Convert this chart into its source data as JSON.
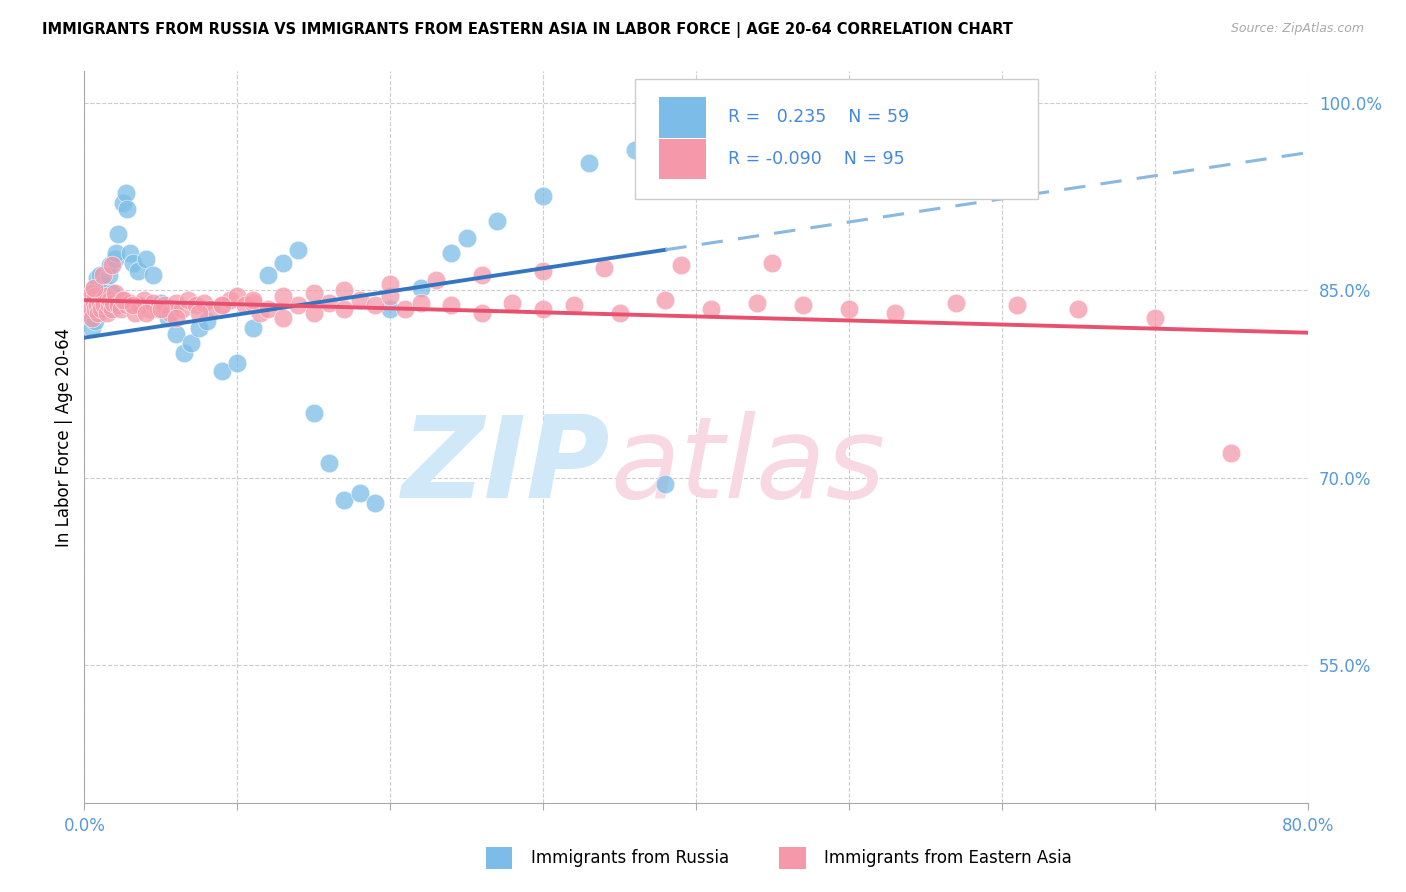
{
  "title": "IMMIGRANTS FROM RUSSIA VS IMMIGRANTS FROM EASTERN ASIA IN LABOR FORCE | AGE 20-64 CORRELATION CHART",
  "source": "Source: ZipAtlas.com",
  "ylabel": "In Labor Force | Age 20-64",
  "xlabel_russia": "Immigrants from Russia",
  "xlabel_eastern_asia": "Immigrants from Eastern Asia",
  "xlim": [
    0.0,
    0.8
  ],
  "ylim": [
    0.44,
    1.025
  ],
  "yticks": [
    0.55,
    0.7,
    0.85,
    1.0
  ],
  "ytick_labels": [
    "55.0%",
    "70.0%",
    "85.0%",
    "100.0%"
  ],
  "xtick_positions": [
    0.0,
    0.1,
    0.2,
    0.3,
    0.4,
    0.5,
    0.6,
    0.7,
    0.8
  ],
  "R_russia": 0.235,
  "N_russia": 59,
  "R_eastern_asia": -0.09,
  "N_eastern_asia": 95,
  "color_russia": "#7bbde8",
  "color_eastern_asia": "#f599aa",
  "color_russia_line": "#3575c0",
  "color_eastern_asia_line": "#e85070",
  "color_russia_line_dashed": "#8ab8e0",
  "russia_x": [
    0.002,
    0.003,
    0.004,
    0.005,
    0.005,
    0.006,
    0.006,
    0.007,
    0.008,
    0.008,
    0.009,
    0.01,
    0.01,
    0.011,
    0.012,
    0.013,
    0.014,
    0.015,
    0.016,
    0.017,
    0.018,
    0.02,
    0.021,
    0.022,
    0.025,
    0.027,
    0.028,
    0.03,
    0.032,
    0.035,
    0.04,
    0.045,
    0.05,
    0.055,
    0.06,
    0.065,
    0.07,
    0.075,
    0.08,
    0.09,
    0.1,
    0.11,
    0.12,
    0.13,
    0.14,
    0.15,
    0.16,
    0.17,
    0.18,
    0.2,
    0.22,
    0.24,
    0.27,
    0.3,
    0.33,
    0.36,
    0.38,
    0.19,
    0.25
  ],
  "russia_y": [
    0.835,
    0.84,
    0.83,
    0.845,
    0.82,
    0.838,
    0.852,
    0.825,
    0.842,
    0.86,
    0.835,
    0.838,
    0.862,
    0.845,
    0.855,
    0.84,
    0.848,
    0.835,
    0.862,
    0.87,
    0.848,
    0.875,
    0.88,
    0.895,
    0.92,
    0.928,
    0.915,
    0.88,
    0.872,
    0.865,
    0.875,
    0.862,
    0.84,
    0.828,
    0.815,
    0.8,
    0.808,
    0.82,
    0.825,
    0.785,
    0.792,
    0.82,
    0.862,
    0.872,
    0.882,
    0.752,
    0.712,
    0.682,
    0.688,
    0.835,
    0.852,
    0.88,
    0.905,
    0.925,
    0.952,
    0.962,
    0.695,
    0.68,
    0.892
  ],
  "eastern_asia_x": [
    0.002,
    0.003,
    0.004,
    0.005,
    0.005,
    0.006,
    0.007,
    0.007,
    0.008,
    0.009,
    0.01,
    0.011,
    0.012,
    0.013,
    0.014,
    0.015,
    0.016,
    0.017,
    0.018,
    0.019,
    0.02,
    0.022,
    0.024,
    0.026,
    0.028,
    0.03,
    0.033,
    0.036,
    0.039,
    0.042,
    0.045,
    0.048,
    0.052,
    0.056,
    0.06,
    0.064,
    0.068,
    0.073,
    0.078,
    0.083,
    0.09,
    0.095,
    0.1,
    0.105,
    0.11,
    0.115,
    0.12,
    0.13,
    0.14,
    0.15,
    0.16,
    0.17,
    0.18,
    0.19,
    0.2,
    0.21,
    0.22,
    0.24,
    0.26,
    0.28,
    0.3,
    0.32,
    0.35,
    0.38,
    0.41,
    0.44,
    0.47,
    0.5,
    0.53,
    0.57,
    0.61,
    0.65,
    0.7,
    0.75,
    0.006,
    0.012,
    0.018,
    0.025,
    0.032,
    0.04,
    0.05,
    0.06,
    0.075,
    0.09,
    0.11,
    0.13,
    0.15,
    0.17,
    0.2,
    0.23,
    0.26,
    0.3,
    0.34,
    0.39,
    0.45
  ],
  "eastern_asia_y": [
    0.838,
    0.842,
    0.835,
    0.848,
    0.828,
    0.84,
    0.835,
    0.845,
    0.838,
    0.832,
    0.84,
    0.835,
    0.842,
    0.838,
    0.845,
    0.832,
    0.838,
    0.842,
    0.835,
    0.84,
    0.848,
    0.838,
    0.835,
    0.842,
    0.838,
    0.84,
    0.832,
    0.838,
    0.842,
    0.835,
    0.84,
    0.835,
    0.838,
    0.832,
    0.84,
    0.835,
    0.842,
    0.838,
    0.84,
    0.835,
    0.838,
    0.842,
    0.845,
    0.838,
    0.84,
    0.832,
    0.835,
    0.828,
    0.838,
    0.832,
    0.84,
    0.835,
    0.842,
    0.838,
    0.845,
    0.835,
    0.84,
    0.838,
    0.832,
    0.84,
    0.835,
    0.838,
    0.832,
    0.842,
    0.835,
    0.84,
    0.838,
    0.835,
    0.832,
    0.84,
    0.838,
    0.835,
    0.828,
    0.72,
    0.852,
    0.862,
    0.87,
    0.842,
    0.838,
    0.832,
    0.835,
    0.828,
    0.832,
    0.838,
    0.842,
    0.845,
    0.848,
    0.85,
    0.855,
    0.858,
    0.862,
    0.865,
    0.868,
    0.87,
    0.872
  ],
  "russia_line_x0": 0.0,
  "russia_line_x1": 0.8,
  "russia_line_y_at_0": 0.812,
  "russia_line_y_at_38": 0.876,
  "russia_line_y_at_80": 0.96,
  "eastern_line_y_at_0": 0.842,
  "eastern_line_y_at_75": 0.818,
  "eastern_line_y_at_80": 0.816
}
